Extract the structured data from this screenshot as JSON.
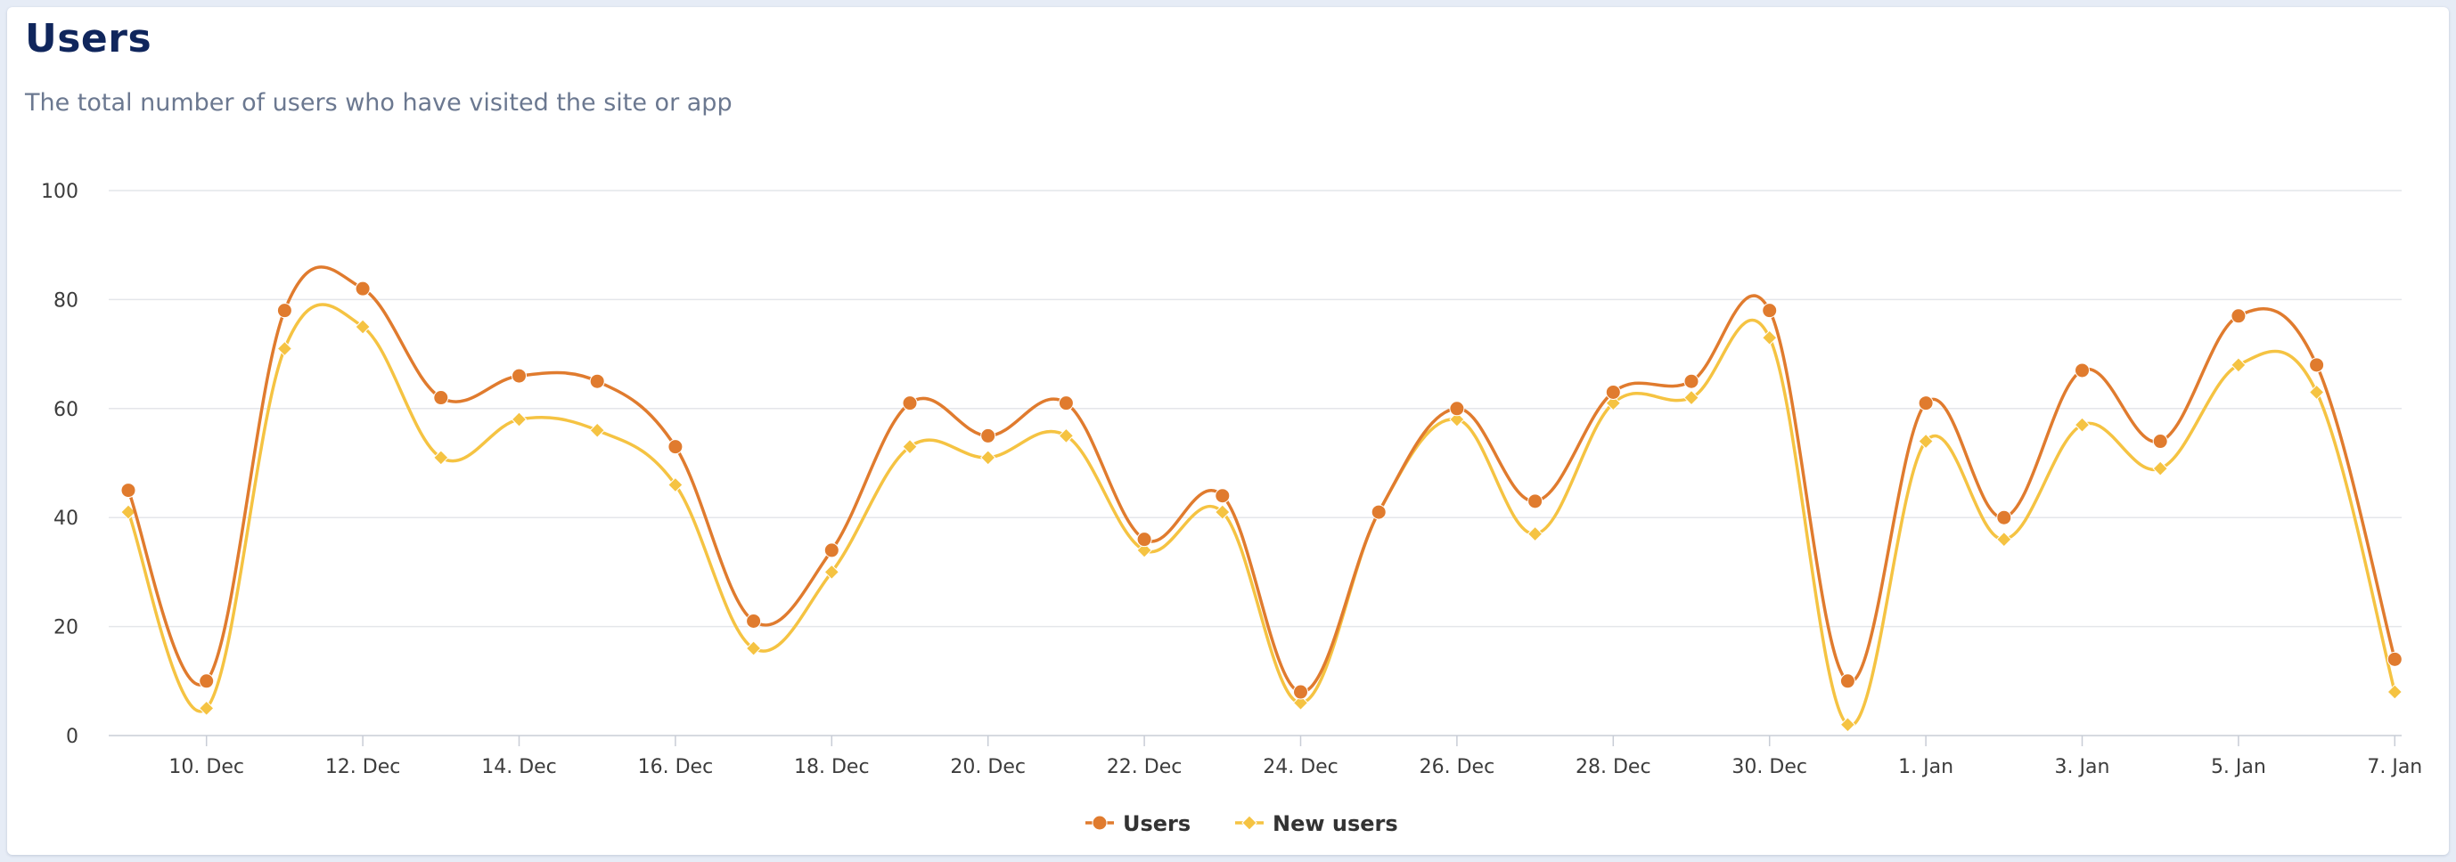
{
  "header": {
    "title": "Users",
    "subtitle": "The total number of users who have visited the site or app"
  },
  "chart_data": {
    "type": "line",
    "smooth": true,
    "x": [
      "9. Dec",
      "10. Dec",
      "11. Dec",
      "12. Dec",
      "13. Dec",
      "14. Dec",
      "15. Dec",
      "16. Dec",
      "17. Dec",
      "18. Dec",
      "19. Dec",
      "20. Dec",
      "21. Dec",
      "22. Dec",
      "23. Dec",
      "24. Dec",
      "25. Dec",
      "26. Dec",
      "27. Dec",
      "28. Dec",
      "29. Dec",
      "30. Dec",
      "31. Dec",
      "1. Jan",
      "2. Jan",
      "3. Jan",
      "4. Jan",
      "5. Jan",
      "6. Jan",
      "7. Jan"
    ],
    "xtick_labels": [
      "10. Dec",
      "12. Dec",
      "14. Dec",
      "16. Dec",
      "18. Dec",
      "20. Dec",
      "22. Dec",
      "24. Dec",
      "26. Dec",
      "28. Dec",
      "30. Dec",
      "1. Jan",
      "3. Jan",
      "5. Jan",
      "7. Jan"
    ],
    "yticks": [
      0,
      20,
      40,
      60,
      80,
      100
    ],
    "ylim": [
      0,
      100
    ],
    "grid": true,
    "legend_position": "bottom-center",
    "series": [
      {
        "name": "Users",
        "color": "#e07b2e",
        "marker": "circle",
        "values": [
          45,
          10,
          78,
          82,
          62,
          66,
          65,
          53,
          21,
          34,
          61,
          55,
          61,
          36,
          44,
          8,
          41,
          60,
          43,
          63,
          65,
          78,
          10,
          61,
          40,
          67,
          54,
          77,
          68,
          14
        ]
      },
      {
        "name": "New users",
        "color": "#f5c342",
        "marker": "diamond",
        "values": [
          41,
          5,
          71,
          75,
          51,
          58,
          56,
          46,
          16,
          30,
          53,
          51,
          55,
          34,
          41,
          6,
          41,
          58,
          37,
          61,
          62,
          73,
          2,
          54,
          36,
          57,
          49,
          68,
          63,
          8
        ]
      }
    ]
  }
}
